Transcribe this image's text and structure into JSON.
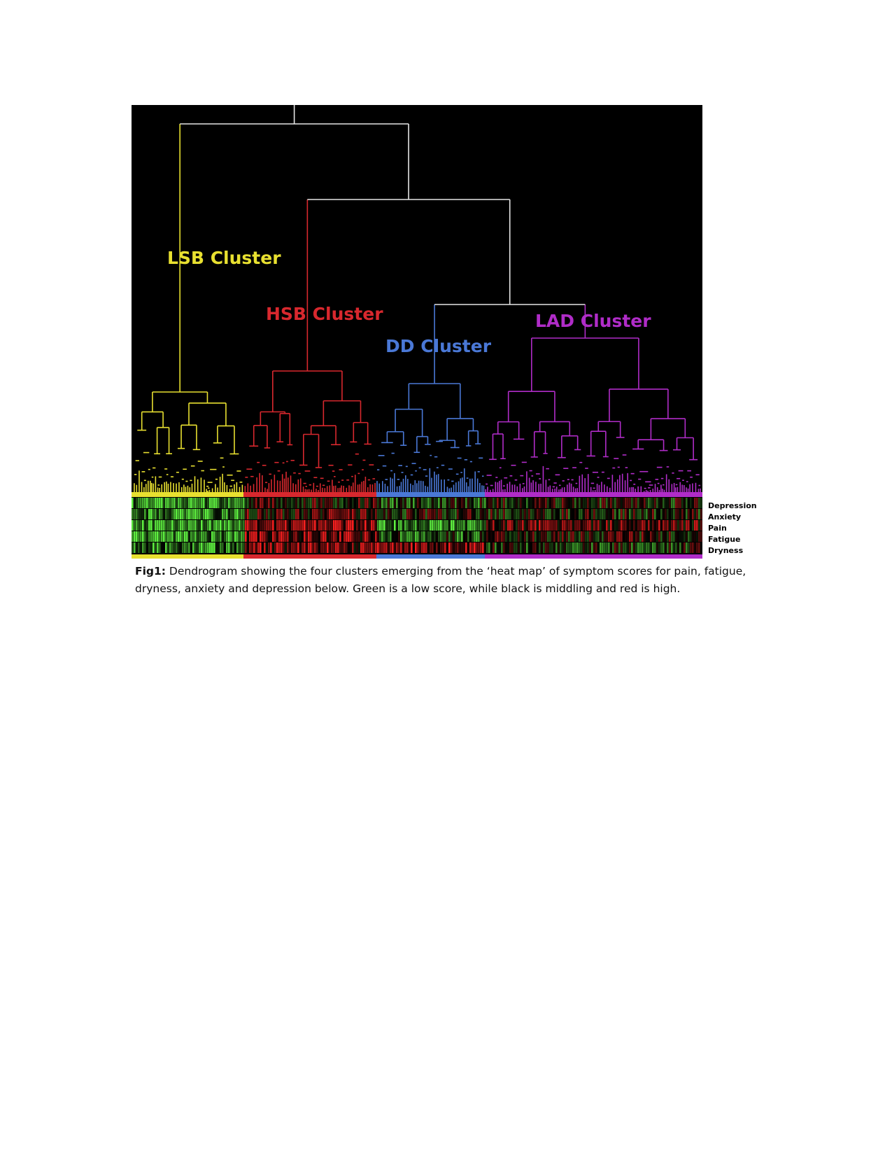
{
  "figure": {
    "clusters": [
      {
        "name": "LSB Cluster",
        "color": "#e8e030"
      },
      {
        "name": "HSB Cluster",
        "color": "#d8282e"
      },
      {
        "name": "DD Cluster",
        "color": "#4a78d6"
      },
      {
        "name": "LAD Cluster",
        "color": "#b02cc8"
      }
    ],
    "heatmap": {
      "rows": [
        "Depression",
        "Anxiety",
        "Pain",
        "Fatigue",
        "Dryness"
      ],
      "color_low": "#5ef040",
      "color_mid": "#000000",
      "color_high": "#ff2020"
    },
    "caption": {
      "label": "Fig1:",
      "text": " Dendrogram showing the four clusters emerging from the ‘heat map’ of symptom scores for pain, fatigue, dryness, anxiety and depression below. Green is a low score, while black is middling and red is high."
    }
  }
}
